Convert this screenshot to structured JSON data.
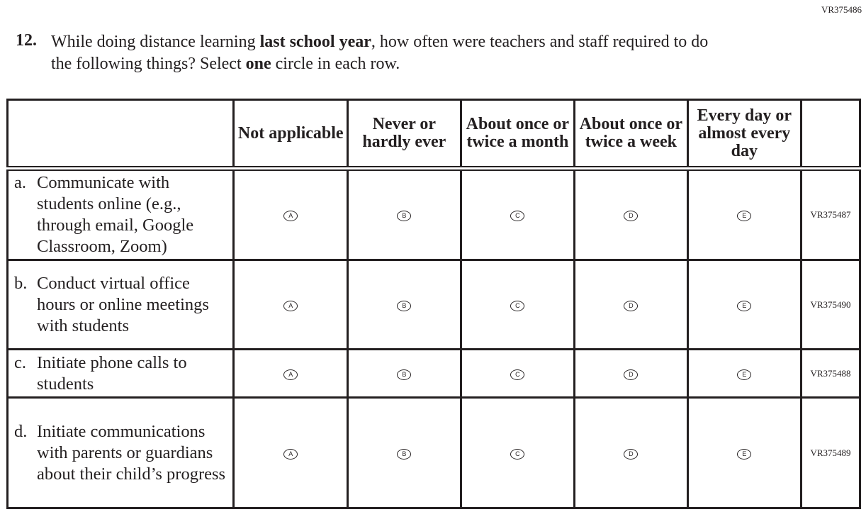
{
  "page_id": "VR375486",
  "question": {
    "number": "12.",
    "text_1": "While doing distance learning ",
    "bold_1": "last school year",
    "text_2": ", how often were teachers and staff required to do the following things? Select ",
    "bold_2": "one",
    "text_3": " circle in each row."
  },
  "columns": [
    "Not applicable",
    "Never or hardly ever",
    "About once or twice a month",
    "About once or twice a week",
    "Every day or almost every day"
  ],
  "rows": [
    {
      "letter": "a.",
      "text": "Communicate with students online (e.g., through email, Google Classroom, Zoom)",
      "options": [
        "A",
        "B",
        "C",
        "D",
        "E"
      ],
      "id": "VR375487"
    },
    {
      "letter": "b.",
      "text": "Conduct virtual office hours or online meetings with students",
      "options": [
        "A",
        "B",
        "C",
        "D",
        "E"
      ],
      "id": "VR375490"
    },
    {
      "letter": "c.",
      "text": "Initiate phone calls to students",
      "options": [
        "A",
        "B",
        "C",
        "D",
        "E"
      ],
      "id": "VR375488"
    },
    {
      "letter": "d.",
      "text": "Initiate communications with parents or guardians about their child’s progress",
      "options": [
        "A",
        "B",
        "C",
        "D",
        "E"
      ],
      "id": "VR375489"
    }
  ]
}
